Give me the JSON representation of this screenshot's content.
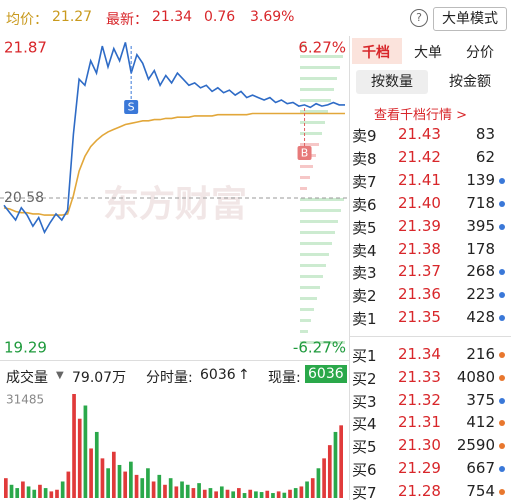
{
  "header": {
    "avg_label": "均价：",
    "avg": "21.27",
    "last_label": "最新：",
    "last": "21.34",
    "change": "0.76",
    "change_pct": "3.69%",
    "help": "?",
    "mode_button": "大单模式"
  },
  "chart": {
    "price_high": 21.87,
    "price_low": 19.29,
    "prev_close": 20.58,
    "pct_high": "6.27%",
    "pct_low": "-6.27%",
    "watermark": "东方财富",
    "sell_marker": "S",
    "buy_marker": "B",
    "prices": [
      20.52,
      20.46,
      20.4,
      20.5,
      20.44,
      20.35,
      20.42,
      20.3,
      20.38,
      20.45,
      20.4,
      20.48,
      21.1,
      21.55,
      21.5,
      21.7,
      21.6,
      21.82,
      21.65,
      21.8,
      21.7,
      21.85,
      21.6,
      21.75,
      21.68,
      21.55,
      21.62,
      21.5,
      21.58,
      21.52,
      21.6,
      21.55,
      21.5,
      21.52,
      21.48,
      21.5,
      21.45,
      21.48,
      21.44,
      21.46,
      21.42,
      21.45,
      21.4,
      21.42,
      21.4,
      21.38,
      21.4,
      21.36,
      21.38,
      21.35,
      21.36,
      21.33,
      21.34,
      21.32,
      21.35,
      21.33,
      21.34,
      21.36,
      21.34,
      21.34
    ],
    "avg_prices": [
      20.5,
      20.49,
      20.47,
      20.46,
      20.46,
      20.45,
      20.45,
      20.44,
      20.44,
      20.44,
      20.44,
      20.45,
      20.6,
      20.8,
      20.92,
      21.0,
      21.05,
      21.09,
      21.12,
      21.14,
      21.16,
      21.18,
      21.19,
      21.2,
      21.21,
      21.21,
      21.22,
      21.22,
      21.23,
      21.23,
      21.24,
      21.24,
      21.24,
      21.25,
      21.25,
      21.25,
      21.25,
      21.26,
      21.26,
      21.26,
      21.26,
      21.26,
      21.26,
      21.27,
      21.27,
      21.27,
      21.27,
      21.27,
      21.27,
      21.27,
      21.27,
      21.27,
      21.27,
      21.27,
      21.27,
      21.27,
      21.27,
      21.27,
      21.27,
      21.27
    ]
  },
  "volume": {
    "label": "成交量",
    "total": "79.07万",
    "tick_label": "分时量:",
    "tick_value": "6036",
    "arrow": "↑",
    "current_label": "现量:",
    "current_value": "6036",
    "max": 31485,
    "values": [
      6000,
      4000,
      3000,
      5000,
      3500,
      2500,
      4000,
      3000,
      2000,
      2500,
      5000,
      8000,
      31485,
      24000,
      28000,
      15000,
      20000,
      12000,
      9000,
      14000,
      10000,
      8000,
      11000,
      7000,
      6000,
      9000,
      5000,
      7000,
      4000,
      6000,
      3500,
      5000,
      4000,
      3000,
      4500,
      2500,
      3000,
      2000,
      3500,
      2500,
      2000,
      3000,
      1500,
      2500,
      2000,
      1800,
      2200,
      1500,
      2000,
      1600,
      2500,
      3000,
      3500,
      5000,
      6000,
      9000,
      12000,
      16000,
      20000,
      22000
    ]
  },
  "panel": {
    "tabs": [
      "千档",
      "大单",
      "分价"
    ],
    "buttons": [
      "按数量",
      "按金额"
    ],
    "link": "查看千档行情 >",
    "asks": [
      {
        "label": "卖9",
        "price": "21.43",
        "qty": "83"
      },
      {
        "label": "卖8",
        "price": "21.42",
        "qty": "62"
      },
      {
        "label": "卖7",
        "price": "21.41",
        "qty": "139",
        "dot": "#3a78d8"
      },
      {
        "label": "卖6",
        "price": "21.40",
        "qty": "718",
        "dot": "#3a78d8"
      },
      {
        "label": "卖5",
        "price": "21.39",
        "qty": "395",
        "dot": "#3a78d8"
      },
      {
        "label": "卖4",
        "price": "21.38",
        "qty": "178"
      },
      {
        "label": "卖3",
        "price": "21.37",
        "qty": "268",
        "dot": "#3a78d8"
      },
      {
        "label": "卖2",
        "price": "21.36",
        "qty": "223",
        "dot": "#3a78d8"
      },
      {
        "label": "卖1",
        "price": "21.35",
        "qty": "428",
        "dot": "#3a78d8"
      }
    ],
    "bids": [
      {
        "label": "买1",
        "price": "21.34",
        "qty": "216",
        "dot": "#e8772e"
      },
      {
        "label": "买2",
        "price": "21.33",
        "qty": "4080",
        "dot": "#e8772e"
      },
      {
        "label": "买3",
        "price": "21.32",
        "qty": "375",
        "dot": "#3a78d8"
      },
      {
        "label": "买4",
        "price": "21.31",
        "qty": "412",
        "dot": "#e8772e"
      },
      {
        "label": "买5",
        "price": "21.30",
        "qty": "2590",
        "dot": "#e8772e"
      },
      {
        "label": "买6",
        "price": "21.29",
        "qty": "667",
        "dot": "#3a78d8"
      },
      {
        "label": "买7",
        "price": "21.28",
        "qty": "754",
        "dot": "#e8772e"
      }
    ]
  }
}
